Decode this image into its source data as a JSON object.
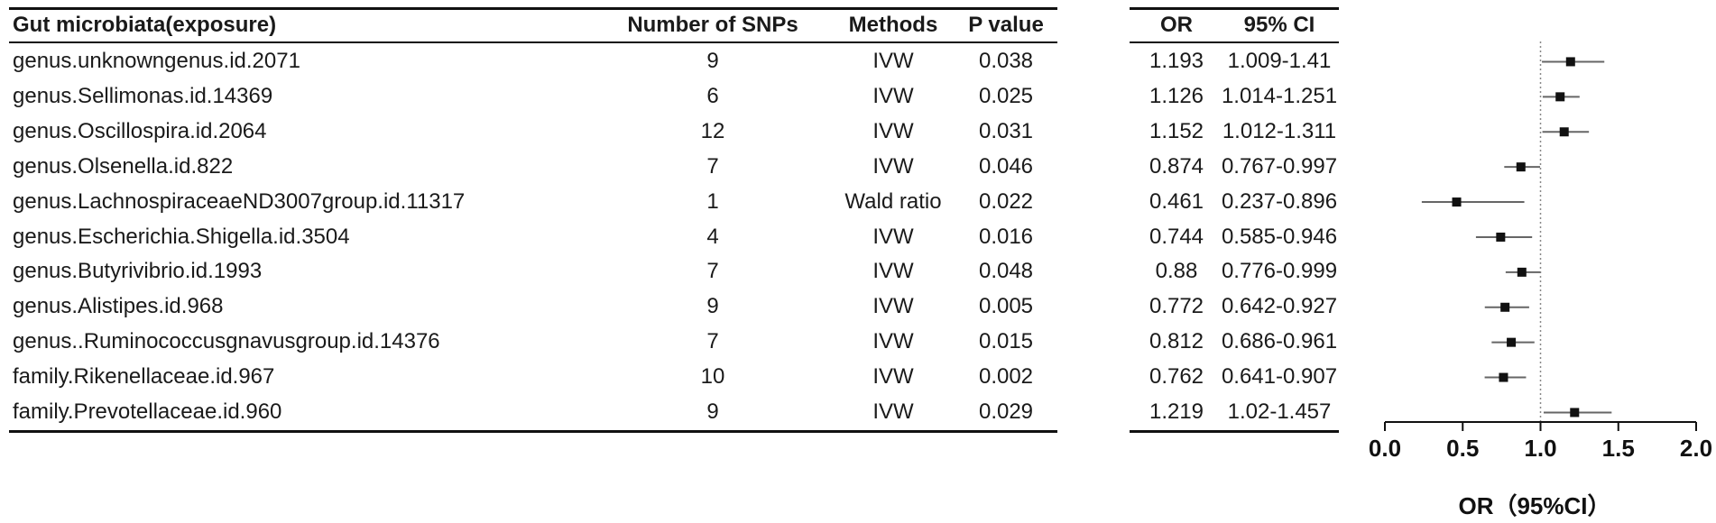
{
  "headers": {
    "name": "Gut microbiata(exposure)",
    "snps": "Number of SNPs",
    "methods": "Methods",
    "pvalue": "P value",
    "or": "OR",
    "ci": "95% CI"
  },
  "rows": [
    {
      "name": "genus.unknowngenus.id.2071",
      "snps": "9",
      "method": "IVW",
      "pvalue": "0.038",
      "or": "1.193",
      "ci": "1.009-1.41"
    },
    {
      "name": "genus.Sellimonas.id.14369",
      "snps": "6",
      "method": "IVW",
      "pvalue": "0.025",
      "or": "1.126",
      "ci": "1.014-1.251"
    },
    {
      "name": "genus.Oscillospira.id.2064",
      "snps": "12",
      "method": "IVW",
      "pvalue": "0.031",
      "or": "1.152",
      "ci": "1.012-1.311"
    },
    {
      "name": "genus.Olsenella.id.822",
      "snps": "7",
      "method": "IVW",
      "pvalue": "0.046",
      "or": "0.874",
      "ci": "0.767-0.997"
    },
    {
      "name": "genus.LachnospiraceaeND3007group.id.11317",
      "snps": "1",
      "method": "Wald ratio",
      "pvalue": "0.022",
      "or": "0.461",
      "ci": "0.237-0.896"
    },
    {
      "name": "genus.Escherichia.Shigella.id.3504",
      "snps": "4",
      "method": "IVW",
      "pvalue": "0.016",
      "or": "0.744",
      "ci": "0.585-0.946"
    },
    {
      "name": "genus.Butyrivibrio.id.1993",
      "snps": "7",
      "method": "IVW",
      "pvalue": "0.048",
      "or": "0.88",
      "ci": "0.776-0.999"
    },
    {
      "name": "genus.Alistipes.id.968",
      "snps": "9",
      "method": "IVW",
      "pvalue": "0.005",
      "or": "0.772",
      "ci": "0.642-0.927"
    },
    {
      "name": "genus..Ruminococcusgnavusgroup.id.14376",
      "snps": "7",
      "method": "IVW",
      "pvalue": "0.015",
      "or": "0.812",
      "ci": "0.686-0.961"
    },
    {
      "name": "family.Rikenellaceae.id.967",
      "snps": "10",
      "method": "IVW",
      "pvalue": "0.002",
      "or": "0.762",
      "ci": "0.641-0.907"
    },
    {
      "name": "family.Prevotellaceae.id.960",
      "snps": "9",
      "method": "IVW",
      "pvalue": "0.029",
      "or": "1.219",
      "ci": "1.02-1.457"
    }
  ],
  "chart_data": {
    "type": "scatter",
    "subtype": "forest",
    "xlabel": "OR（95%CI）",
    "xlim": [
      0.0,
      2.0
    ],
    "xticks": [
      "0.0",
      "0.5",
      "1.0",
      "1.5",
      "2.0"
    ],
    "reference_line": 1.0,
    "points": [
      {
        "or": 1.193,
        "lower": 1.009,
        "upper": 1.41
      },
      {
        "or": 1.126,
        "lower": 1.014,
        "upper": 1.251
      },
      {
        "or": 1.152,
        "lower": 1.012,
        "upper": 1.311
      },
      {
        "or": 0.874,
        "lower": 0.767,
        "upper": 0.997
      },
      {
        "or": 0.461,
        "lower": 0.237,
        "upper": 0.896
      },
      {
        "or": 0.744,
        "lower": 0.585,
        "upper": 0.946
      },
      {
        "or": 0.88,
        "lower": 0.776,
        "upper": 0.999
      },
      {
        "or": 0.772,
        "lower": 0.642,
        "upper": 0.927
      },
      {
        "or": 0.812,
        "lower": 0.686,
        "upper": 0.961
      },
      {
        "or": 0.762,
        "lower": 0.641,
        "upper": 0.907
      },
      {
        "or": 1.219,
        "lower": 1.02,
        "upper": 1.457
      }
    ],
    "colors": {
      "marker": "#111111",
      "ci_line": "#666666",
      "reference": "#888888",
      "axis": "#111111"
    }
  }
}
